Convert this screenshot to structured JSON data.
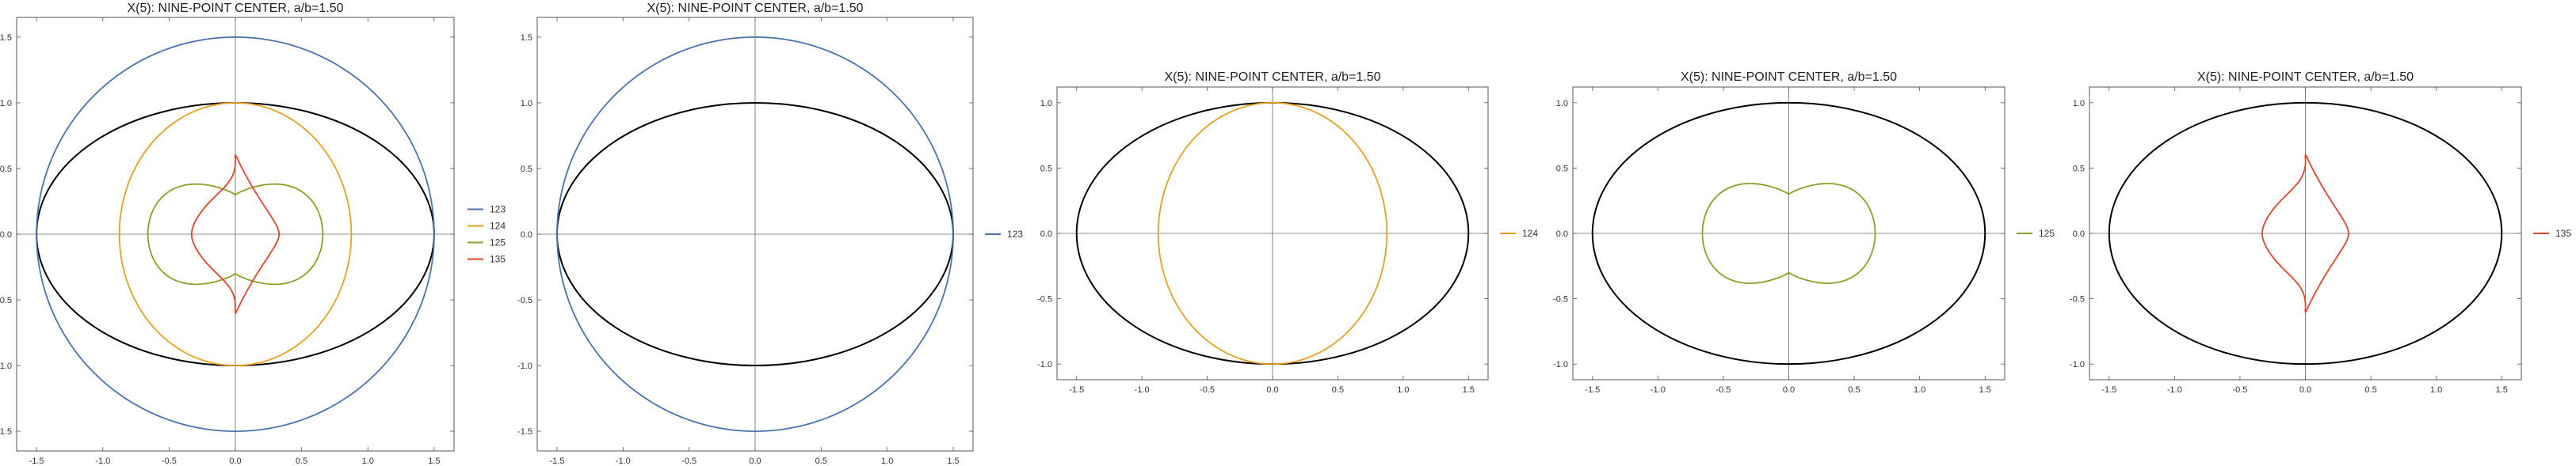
{
  "chart_data": [
    {
      "type": "line",
      "title": "X(5): NINE-POINT CENTER, a/b=1.50",
      "xlabel": "",
      "ylabel": "",
      "xlim": [
        -1.65,
        1.65
      ],
      "ylim": [
        -1.65,
        1.65
      ],
      "xticks": [
        -1.5,
        -1.0,
        -0.5,
        0.0,
        0.5,
        1.0,
        1.5
      ],
      "yticks": [
        -1.5,
        -1.0,
        -0.5,
        0.0,
        0.5,
        1.0,
        1.5
      ],
      "xtick_labels": [
        "-1.5",
        "-1.0",
        "-0.5",
        "0.0",
        "0.5",
        "1.0",
        "1.5"
      ],
      "ytick_labels": [
        "-1.5",
        "-1.0",
        "-0.5",
        "0.0",
        "0.5",
        "1.0",
        "1.5"
      ],
      "legend_position": "right",
      "ellipse": {
        "a": 1.5,
        "b": 1.0,
        "color": "#000000"
      },
      "series": [
        {
          "name": "123",
          "color": "#4a72b0",
          "curve": "ellipse",
          "rx": 1.5,
          "ry": 1.5
        },
        {
          "name": "124",
          "color": "#e8a020",
          "curve": "ellipse",
          "rx": 0.875,
          "ry": 1.0
        },
        {
          "name": "125",
          "color": "#8aa025",
          "curve": "cusp",
          "xmax": 0.66,
          "ymax": 0.51,
          "ycusp": 0.3
        },
        {
          "name": "135",
          "color": "#e8422a",
          "curve": "loops",
          "xmax": 0.33,
          "ymax": 0.58
        }
      ]
    },
    {
      "type": "line",
      "title": "X(5): NINE-POINT CENTER, a/b=1.50",
      "xlabel": "",
      "ylabel": "",
      "xlim": [
        -1.65,
        1.65
      ],
      "ylim": [
        -1.65,
        1.65
      ],
      "xticks": [
        -1.5,
        -1.0,
        -0.5,
        0.0,
        0.5,
        1.0,
        1.5
      ],
      "yticks": [
        -1.5,
        -1.0,
        -0.5,
        0.0,
        0.5,
        1.0,
        1.5
      ],
      "xtick_labels": [
        "-1.5",
        "-1.0",
        "-0.5",
        "0.0",
        "0.5",
        "1.0",
        "1.5"
      ],
      "ytick_labels": [
        "-1.5",
        "-1.0",
        "-0.5",
        "0.0",
        "0.5",
        "1.0",
        "1.5"
      ],
      "legend_position": "right",
      "ellipse": {
        "a": 1.5,
        "b": 1.0,
        "color": "#000000"
      },
      "series": [
        {
          "name": "123",
          "color": "#4a72b0",
          "curve": "ellipse",
          "rx": 1.5,
          "ry": 1.5
        }
      ]
    },
    {
      "type": "line",
      "title": "X(5): NINE-POINT CENTER, a/b=1.50",
      "xlabel": "",
      "ylabel": "",
      "xlim": [
        -1.65,
        1.65
      ],
      "ylim": [
        -1.12,
        1.12
      ],
      "xticks": [
        -1.5,
        -1.0,
        -0.5,
        0.0,
        0.5,
        1.0,
        1.5
      ],
      "yticks": [
        -1.0,
        -0.5,
        0.0,
        0.5,
        1.0
      ],
      "xtick_labels": [
        "-1.5",
        "-1.0",
        "-0.5",
        "0.0",
        "0.5",
        "1.0",
        "1.5"
      ],
      "ytick_labels": [
        "-1.0",
        "-0.5",
        "0.0",
        "0.5",
        "1.0"
      ],
      "legend_position": "right",
      "ellipse": {
        "a": 1.5,
        "b": 1.0,
        "color": "#000000"
      },
      "series": [
        {
          "name": "124",
          "color": "#e8a020",
          "curve": "ellipse",
          "rx": 0.875,
          "ry": 1.0
        }
      ]
    },
    {
      "type": "line",
      "title": "X(5): NINE-POINT CENTER, a/b=1.50",
      "xlabel": "",
      "ylabel": "",
      "xlim": [
        -1.65,
        1.65
      ],
      "ylim": [
        -1.12,
        1.12
      ],
      "xticks": [
        -1.5,
        -1.0,
        -0.5,
        0.0,
        0.5,
        1.0,
        1.5
      ],
      "yticks": [
        -1.0,
        -0.5,
        0.0,
        0.5,
        1.0
      ],
      "xtick_labels": [
        "-1.5",
        "-1.0",
        "-0.5",
        "0.0",
        "0.5",
        "1.0",
        "1.5"
      ],
      "ytick_labels": [
        "-1.0",
        "-0.5",
        "0.0",
        "0.5",
        "1.0"
      ],
      "legend_position": "right",
      "ellipse": {
        "a": 1.5,
        "b": 1.0,
        "color": "#000000"
      },
      "series": [
        {
          "name": "125",
          "color": "#8aa025",
          "curve": "cusp",
          "xmax": 0.66,
          "ymax": 0.51,
          "ycusp": 0.3
        }
      ]
    },
    {
      "type": "line",
      "title": "X(5): NINE-POINT CENTER, a/b=1.50",
      "xlabel": "",
      "ylabel": "",
      "xlim": [
        -1.65,
        1.65
      ],
      "ylim": [
        -1.12,
        1.12
      ],
      "xticks": [
        -1.5,
        -1.0,
        -0.5,
        0.0,
        0.5,
        1.0,
        1.5
      ],
      "yticks": [
        -1.0,
        -0.5,
        0.0,
        0.5,
        1.0
      ],
      "xtick_labels": [
        "-1.5",
        "-1.0",
        "-0.5",
        "0.0",
        "0.5",
        "1.0",
        "1.5"
      ],
      "ytick_labels": [
        "-1.0",
        "-0.5",
        "0.0",
        "0.5",
        "1.0"
      ],
      "legend_position": "right",
      "ellipse": {
        "a": 1.5,
        "b": 1.0,
        "color": "#000000"
      },
      "series": [
        {
          "name": "135",
          "color": "#e8422a",
          "curve": "loops",
          "xmax": 0.33,
          "ymax": 0.58
        }
      ]
    }
  ]
}
